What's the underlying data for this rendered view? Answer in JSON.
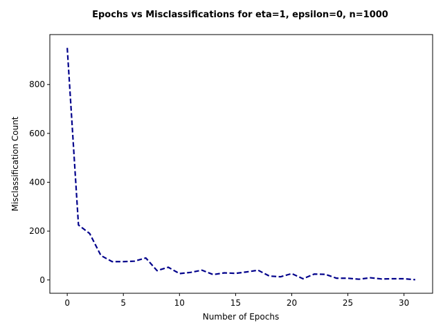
{
  "chart_data": {
    "type": "line",
    "title": "Epochs vs Misclassifications for eta=1, epsilon=0, n=1000",
    "xlabel": "Number of Epochs",
    "ylabel": "Misclassification Count",
    "xlim": [
      -1.55,
      32.55
    ],
    "ylim": [
      -54.5,
      1004.5
    ],
    "xticks": [
      0,
      5,
      10,
      15,
      20,
      25,
      30
    ],
    "yticks": [
      0,
      200,
      400,
      600,
      800
    ],
    "grid": false,
    "line_style": "dashed",
    "series": [
      {
        "color": "#00008b",
        "x": [
          0,
          1,
          2,
          3,
          4,
          5,
          6,
          7,
          8,
          9,
          10,
          11,
          12,
          13,
          14,
          15,
          16,
          17,
          18,
          19,
          20,
          21,
          22,
          23,
          24,
          25,
          26,
          27,
          28,
          29,
          30,
          31
        ],
        "values": [
          950,
          225,
          190,
          100,
          75,
          75,
          77,
          90,
          38,
          52,
          26,
          31,
          40,
          22,
          29,
          27,
          33,
          40,
          16,
          13,
          26,
          5,
          24,
          23,
          7,
          7,
          3,
          9,
          4,
          5,
          5,
          1
        ]
      }
    ]
  }
}
